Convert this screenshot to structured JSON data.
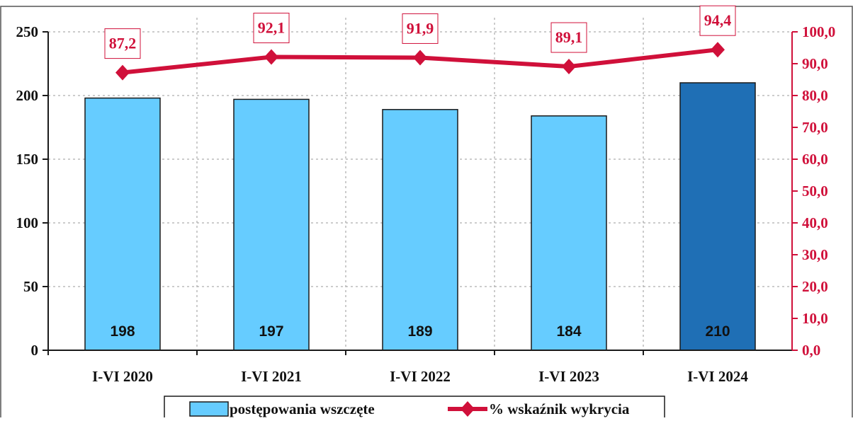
{
  "chart_data": {
    "type": "bar+line",
    "categories": [
      "I-VI 2020",
      "I-VI 2021",
      "I-VI 2022",
      "I-VI 2023",
      "I-VI 2024"
    ],
    "series": [
      {
        "name": "postępowania wszczęte",
        "type": "bar",
        "axis": "left",
        "values": [
          198,
          197,
          189,
          184,
          210
        ],
        "color": "#66CCFF",
        "highlight_color": "#1F6FB5",
        "highlight_index": 4
      },
      {
        "name": "% wskaźnik wykrycia",
        "type": "line",
        "axis": "right",
        "values": [
          87.2,
          92.1,
          91.9,
          89.1,
          94.4
        ],
        "labels": [
          "87,2",
          "92,1",
          "91,9",
          "89,1",
          "94,4"
        ],
        "color": "#D0103A"
      }
    ],
    "y_left": {
      "min": 0,
      "max": 250,
      "ticks": [
        0,
        50,
        100,
        150,
        200,
        250
      ],
      "tick_labels": [
        "0",
        "50",
        "100",
        "150",
        "200",
        "250"
      ]
    },
    "y_right": {
      "min": 0,
      "max": 100,
      "ticks": [
        0,
        10,
        20,
        30,
        40,
        50,
        60,
        70,
        80,
        90,
        100
      ],
      "tick_labels": [
        "0,0",
        "10,0",
        "20,0",
        "30,0",
        "40,0",
        "50,0",
        "60,0",
        "70,0",
        "80,0",
        "90,0",
        "100,0"
      ],
      "color": "#D0103A"
    },
    "grid": true,
    "legend": {
      "position": "bottom",
      "items": [
        "postępowania wszczęte",
        "% wskaźnik wykrycia"
      ]
    }
  }
}
